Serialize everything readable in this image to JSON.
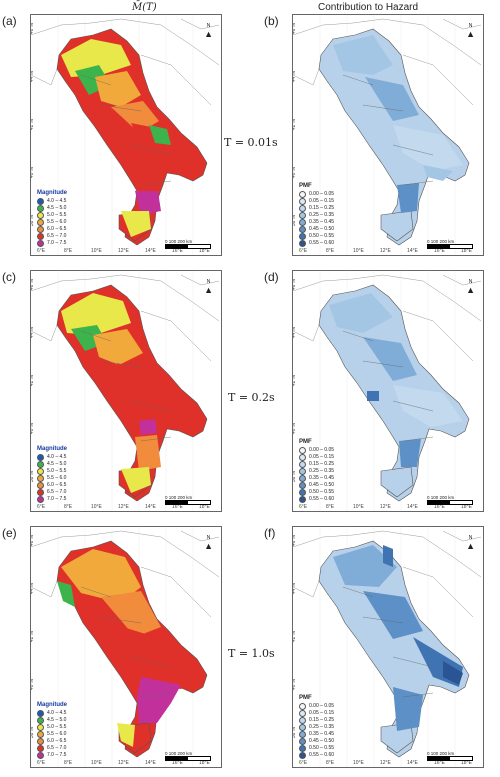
{
  "headers": {
    "left": "M̄(T)",
    "right": "Contribution to Hazard"
  },
  "panel_labels": [
    "(a)",
    "(b)",
    "(c)",
    "(d)",
    "(e)",
    "(f)"
  ],
  "period_labels": [
    "T = 0.01s",
    "T = 0.2s",
    "T = 1.0s"
  ],
  "lat_ticks": [
    "46°N",
    "44°N",
    "42°N",
    "40°N",
    "38°N"
  ],
  "lon_ticks": [
    "6°E",
    "8°E",
    "10°E",
    "12°E",
    "14°E",
    "16°E",
    "18°E"
  ],
  "north": "N",
  "scale": "0  100  200 km",
  "magnitude_legend": {
    "title": "Magnitude",
    "items": [
      {
        "label": "4.0 – 4.5",
        "color": "#1a5ab8"
      },
      {
        "label": "4.5 – 5.0",
        "color": "#3cb44b"
      },
      {
        "label": "5.0 – 5.5",
        "color": "#e8e84a"
      },
      {
        "label": "5.5 – 6.0",
        "color": "#f2a93b"
      },
      {
        "label": "6.0 – 6.5",
        "color": "#f08c3c"
      },
      {
        "label": "6.5 – 7.0",
        "color": "#e0302a"
      },
      {
        "label": "7.0 – 7.5",
        "color": "#c2309c"
      }
    ]
  },
  "pmf_legend": {
    "title": "PMF",
    "items": [
      {
        "label": "0.00 – 0.05",
        "color": "#f2f7fc"
      },
      {
        "label": "0.05 – 0.15",
        "color": "#dce9f5"
      },
      {
        "label": "0.15 – 0.25",
        "color": "#c3d9ee"
      },
      {
        "label": "0.25 – 0.35",
        "color": "#a4c6e5"
      },
      {
        "label": "0.35 – 0.45",
        "color": "#80acd8"
      },
      {
        "label": "0.45 – 0.50",
        "color": "#5d90c7"
      },
      {
        "label": "0.50 – 0.55",
        "color": "#3f73b1"
      },
      {
        "label": "0.55 – 0.60",
        "color": "#2a5494"
      }
    ]
  }
}
